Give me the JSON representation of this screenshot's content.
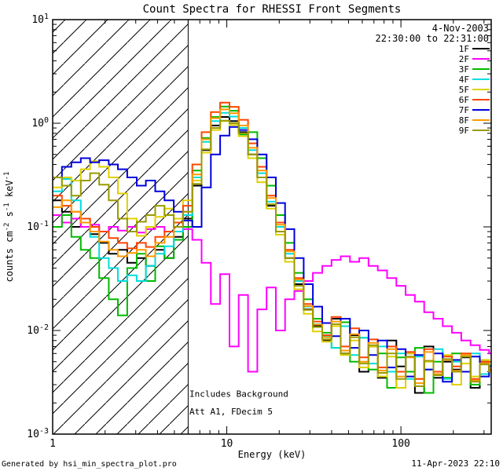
{
  "window": {
    "title": "Count Spectra for RHESSI Front Segments"
  },
  "footer": {
    "left": "Generated by hsi_min_spectra_plot.pro",
    "right": "11-Apr-2023 22:10"
  },
  "chart_data": {
    "type": "line",
    "title": "Count Spectra for RHESSI Front Segments",
    "xlabel": "Energy (keV)",
    "ylabel": "counts cm^-2 s^-1 keV^-1",
    "xscale": "log",
    "yscale": "log",
    "xlim": [
      1,
      330
    ],
    "ylim": [
      0.001,
      10
    ],
    "grid": false,
    "legend_position": "upper right",
    "xticks": {
      "values": [
        1,
        10,
        100
      ],
      "labels": [
        "1",
        "10",
        "100"
      ]
    },
    "yticks": {
      "values": [
        0.001,
        0.01,
        0.1,
        1,
        10
      ],
      "labels": [
        "10^-3",
        "10^-2",
        "10^-1",
        "10^0",
        "10^1"
      ]
    },
    "header_annotations": [
      "4-Nov-2003",
      "22:30:00 to 22:31:00"
    ],
    "annotations": [
      {
        "text": "Includes Background",
        "x": 6.1,
        "y": 0.0023
      },
      {
        "text": "Att A1, FDecim 5",
        "x": 6.1,
        "y": 0.00155
      }
    ],
    "vline_x": 6,
    "hatched_region": {
      "xmin": 1,
      "xmax": 6
    },
    "energies_kev": [
      1.0,
      1.13,
      1.28,
      1.45,
      1.64,
      1.85,
      2.1,
      2.37,
      2.68,
      3.04,
      3.43,
      3.88,
      4.39,
      4.96,
      5.61,
      6.34,
      7.17,
      8.1,
      9.16,
      10.36,
      11.71,
      13.24,
      14.97,
      16.92,
      19.13,
      21.62,
      24.44,
      27.63,
      31.23,
      35.31,
      39.92,
      45.12,
      51.01,
      57.66,
      65.18,
      73.69,
      83.3,
      94.16,
      106.4,
      120.3,
      136.0,
      153.8,
      173.8,
      196.5,
      222.2,
      251.1,
      283.9,
      320.9
    ],
    "series": [
      {
        "name": "1F",
        "color": "#000000",
        "values": [
          0.18,
          0.14,
          0.1,
          0.12,
          0.085,
          0.07,
          0.055,
          0.06,
          0.045,
          0.05,
          0.042,
          0.06,
          0.05,
          0.08,
          0.12,
          0.25,
          0.55,
          0.95,
          1.15,
          1.05,
          0.82,
          0.5,
          0.3,
          0.16,
          0.09,
          0.05,
          0.028,
          0.016,
          0.011,
          0.008,
          0.013,
          0.006,
          0.009,
          0.004,
          0.007,
          0.0035,
          0.008,
          0.0045,
          0.006,
          0.0025,
          0.007,
          0.0035,
          0.005,
          0.0042,
          0.0055,
          0.0028,
          0.0048,
          0.004
        ]
      },
      {
        "name": "2F",
        "color": "#ff00ff",
        "values": [
          0.13,
          0.11,
          0.12,
          0.1,
          0.105,
          0.09,
          0.1,
          0.092,
          0.1,
          0.088,
          0.095,
          0.1,
          0.09,
          0.1,
          0.095,
          0.075,
          0.045,
          0.018,
          0.035,
          0.007,
          0.022,
          0.004,
          0.016,
          0.026,
          0.01,
          0.02,
          0.024,
          0.03,
          0.036,
          0.042,
          0.048,
          0.052,
          0.046,
          0.05,
          0.042,
          0.038,
          0.032,
          0.027,
          0.022,
          0.019,
          0.015,
          0.013,
          0.011,
          0.0095,
          0.008,
          0.0072,
          0.0065,
          0.006
        ]
      },
      {
        "name": "3F",
        "color": "#00bb00",
        "values": [
          0.1,
          0.13,
          0.08,
          0.06,
          0.05,
          0.032,
          0.02,
          0.014,
          0.04,
          0.055,
          0.03,
          0.065,
          0.05,
          0.075,
          0.1,
          0.35,
          0.72,
          1.15,
          1.45,
          1.32,
          0.78,
          0.82,
          0.46,
          0.25,
          0.13,
          0.07,
          0.036,
          0.02,
          0.013,
          0.0095,
          0.0068,
          0.012,
          0.005,
          0.0085,
          0.0042,
          0.006,
          0.0028,
          0.0055,
          0.004,
          0.0068,
          0.0025,
          0.005,
          0.0035,
          0.006,
          0.004,
          0.003,
          0.005,
          0.0042
        ]
      },
      {
        "name": "4F",
        "color": "#00dede",
        "values": [
          0.22,
          0.29,
          0.18,
          0.12,
          0.08,
          0.05,
          0.04,
          0.03,
          0.034,
          0.03,
          0.042,
          0.055,
          0.065,
          0.09,
          0.13,
          0.3,
          0.66,
          1.05,
          1.26,
          1.16,
          0.9,
          0.55,
          0.33,
          0.175,
          0.1,
          0.055,
          0.03,
          0.017,
          0.0115,
          0.0088,
          0.0068,
          0.011,
          0.0058,
          0.0085,
          0.0048,
          0.007,
          0.004,
          0.006,
          0.0034,
          0.0056,
          0.0042,
          0.0066,
          0.0034,
          0.005,
          0.004,
          0.006,
          0.0038,
          0.0046
        ]
      },
      {
        "name": "5F",
        "color": "#e0d000",
        "values": [
          0.24,
          0.3,
          0.28,
          0.36,
          0.43,
          0.38,
          0.3,
          0.21,
          0.12,
          0.082,
          0.1,
          0.125,
          0.15,
          0.12,
          0.18,
          0.28,
          0.52,
          0.86,
          1.05,
          0.96,
          0.75,
          0.46,
          0.27,
          0.15,
          0.084,
          0.046,
          0.025,
          0.0145,
          0.0098,
          0.0078,
          0.011,
          0.0058,
          0.008,
          0.0044,
          0.007,
          0.0036,
          0.0056,
          0.0028,
          0.006,
          0.0034,
          0.005,
          0.004,
          0.0058,
          0.003,
          0.0048,
          0.0036,
          0.0052,
          0.004
        ]
      },
      {
        "name": "6F",
        "color": "#ff4400",
        "values": [
          0.2,
          0.16,
          0.14,
          0.12,
          0.1,
          0.09,
          0.078,
          0.07,
          0.062,
          0.07,
          0.064,
          0.08,
          0.09,
          0.11,
          0.16,
          0.4,
          0.82,
          1.28,
          1.58,
          1.44,
          1.08,
          0.64,
          0.38,
          0.2,
          0.11,
          0.06,
          0.032,
          0.018,
          0.0122,
          0.009,
          0.0135,
          0.007,
          0.0105,
          0.0055,
          0.0082,
          0.0044,
          0.007,
          0.004,
          0.0062,
          0.0034,
          0.0066,
          0.004,
          0.0056,
          0.0045,
          0.006,
          0.0034,
          0.005,
          0.0042
        ]
      },
      {
        "name": "7F",
        "color": "#0000dd",
        "values": [
          0.3,
          0.38,
          0.42,
          0.46,
          0.42,
          0.44,
          0.4,
          0.36,
          0.3,
          0.25,
          0.28,
          0.22,
          0.18,
          0.14,
          0.115,
          0.1,
          0.24,
          0.5,
          0.76,
          0.92,
          0.86,
          0.7,
          0.5,
          0.3,
          0.17,
          0.095,
          0.05,
          0.028,
          0.017,
          0.0118,
          0.0088,
          0.013,
          0.0068,
          0.01,
          0.0058,
          0.008,
          0.0044,
          0.0066,
          0.0036,
          0.0058,
          0.0042,
          0.006,
          0.0032,
          0.0052,
          0.004,
          0.0056,
          0.0036,
          0.0045
        ]
      },
      {
        "name": "8F",
        "color": "#ff9900",
        "values": [
          0.155,
          0.18,
          0.14,
          0.11,
          0.09,
          0.072,
          0.06,
          0.052,
          0.056,
          0.06,
          0.052,
          0.07,
          0.08,
          0.1,
          0.14,
          0.32,
          0.7,
          1.12,
          1.36,
          1.25,
          0.95,
          0.58,
          0.35,
          0.19,
          0.105,
          0.058,
          0.031,
          0.0172,
          0.0114,
          0.0086,
          0.0122,
          0.0064,
          0.0092,
          0.005,
          0.0076,
          0.0041,
          0.0066,
          0.0036,
          0.0055,
          0.0031,
          0.0062,
          0.0038,
          0.0052,
          0.0041,
          0.0058,
          0.0033,
          0.0048,
          0.004
        ]
      },
      {
        "name": "9F",
        "color": "#9a9a00",
        "values": [
          0.3,
          0.25,
          0.2,
          0.28,
          0.33,
          0.255,
          0.18,
          0.12,
          0.09,
          0.112,
          0.13,
          0.16,
          0.13,
          0.1,
          0.14,
          0.26,
          0.56,
          0.9,
          1.06,
          1.0,
          0.8,
          0.5,
          0.3,
          0.165,
          0.09,
          0.05,
          0.027,
          0.0158,
          0.0108,
          0.0082,
          0.0115,
          0.006,
          0.0086,
          0.0048,
          0.0072,
          0.0039,
          0.006,
          0.0034,
          0.0056,
          0.0029,
          0.0051,
          0.0037,
          0.0053,
          0.004,
          0.0056,
          0.0032,
          0.0047,
          0.004
        ]
      }
    ]
  }
}
